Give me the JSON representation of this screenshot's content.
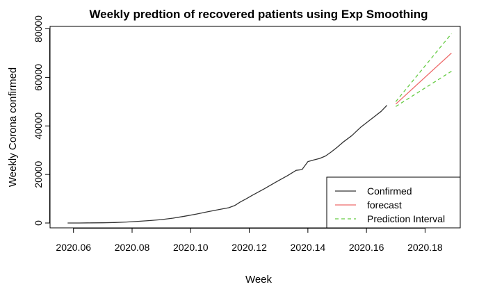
{
  "chart_data": {
    "type": "line",
    "title": "Weekly predtion of recovered patients using Exp Smoothing",
    "xlabel": "Week",
    "ylabel": "Weekly Corona confirmed",
    "xlim": [
      2020.052,
      2020.192
    ],
    "ylim": [
      -2000,
      81000
    ],
    "x_ticks": [
      2020.06,
      2020.08,
      2020.1,
      2020.12,
      2020.14,
      2020.16,
      2020.18
    ],
    "x_tick_labels": [
      "2020.06",
      "2020.08",
      "2020.10",
      "2020.12",
      "2020.14",
      "2020.16",
      "2020.18"
    ],
    "y_ticks": [
      0,
      20000,
      40000,
      60000,
      80000
    ],
    "y_tick_labels": [
      "0",
      "20000",
      "40000",
      "60000",
      "80000"
    ],
    "legend": {
      "position": "bottom-right",
      "entries": [
        {
          "label": "Confirmed",
          "color": "#333333",
          "dash": "solid"
        },
        {
          "label": "forecast",
          "color": "#ee6a6a",
          "dash": "solid"
        },
        {
          "label": "Prediction Interval",
          "color": "#66cc44",
          "dash": "dashed"
        }
      ]
    },
    "series": [
      {
        "name": "Confirmed",
        "color": "#333333",
        "dash": "solid",
        "x": [
          2020.058,
          2020.062,
          2020.066,
          2020.07,
          2020.074,
          2020.078,
          2020.082,
          2020.086,
          2020.09,
          2020.094,
          2020.098,
          2020.102,
          2020.106,
          2020.11,
          2020.113,
          2020.115,
          2020.117,
          2020.119,
          2020.121,
          2020.125,
          2020.129,
          2020.133,
          2020.136,
          2020.138,
          2020.14,
          2020.142,
          2020.144,
          2020.146,
          2020.148,
          2020.15,
          2020.152,
          2020.155,
          2020.158,
          2020.162,
          2020.165,
          2020.167
        ],
        "y": [
          0,
          0,
          50,
          100,
          200,
          400,
          700,
          1000,
          1400,
          2000,
          2800,
          3700,
          4700,
          5600,
          6300,
          7200,
          8700,
          10000,
          11400,
          14000,
          16800,
          19500,
          21700,
          22000,
          25300,
          26000,
          26600,
          27600,
          29300,
          31200,
          33300,
          36000,
          39400,
          43200,
          46000,
          48500
        ]
      },
      {
        "name": "forecast",
        "color": "#ee6a6a",
        "dash": "solid",
        "x": [
          2020.17,
          2020.189
        ],
        "y": [
          49000,
          70000
        ]
      },
      {
        "name": "Prediction Interval",
        "color": "#66cc44",
        "dash": "dashed",
        "x": [
          2020.17,
          2020.189
        ],
        "y": [
          50000,
          78000
        ]
      },
      {
        "name": "Prediction Interval",
        "color": "#66cc44",
        "dash": "dashed",
        "x": [
          2020.17,
          2020.189
        ],
        "y": [
          48000,
          62500
        ]
      }
    ]
  }
}
